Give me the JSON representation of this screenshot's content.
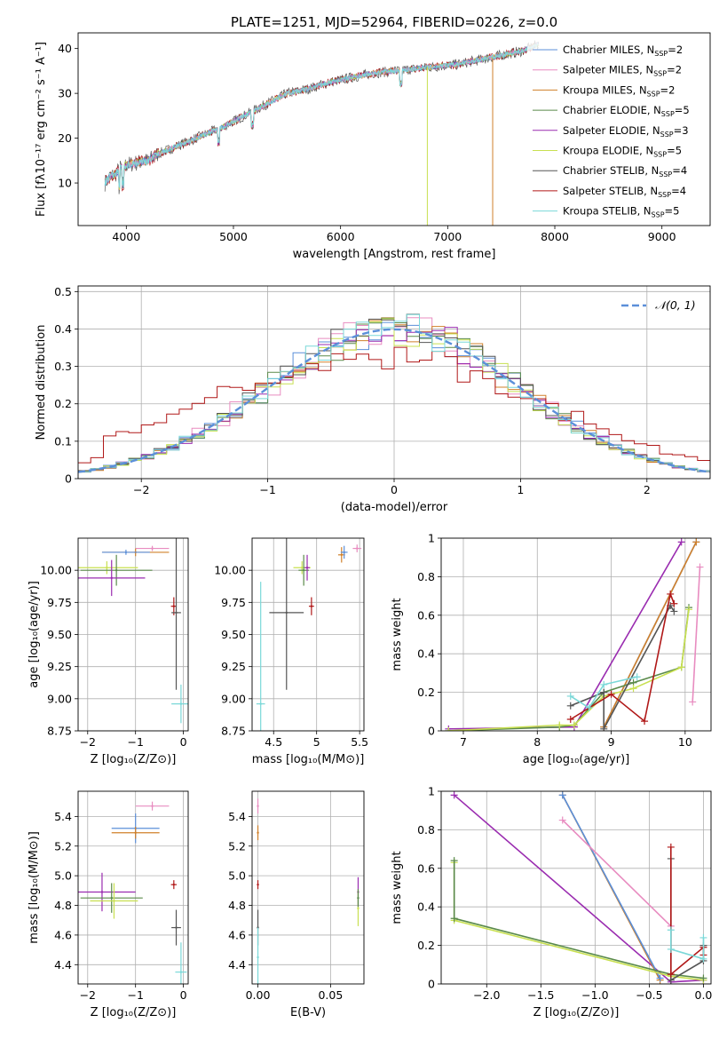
{
  "figure_title": "PLATE=1251, MJD=52964, FIBERID=0226, z=0.0",
  "colors": {
    "chabrier_miles": "#5b8fd9",
    "salpeter_miles": "#e88cc0",
    "kroupa_miles": "#d0802a",
    "chabrier_elodie": "#5a8a4a",
    "salpeter_elodie": "#9a2cb0",
    "kroupa_elodie": "#c8e050",
    "chabrier_stelib": "#555555",
    "salpeter_stelib": "#b01818",
    "kroupa_stelib": "#7ad8d8",
    "normal_curve": "#5b8fd9"
  },
  "chart_data": [
    {
      "id": "spectrum",
      "type": "line",
      "title": "PLATE=1251, MJD=52964, FIBERID=0226, z=0.0",
      "xlabel": "wavelength [Angstrom, rest frame]",
      "ylabel": "Flux [fλ10⁻¹⁷ erg cm⁻² s⁻¹ A⁻¹]",
      "xlim": [
        3550,
        9450
      ],
      "ylim": [
        0.5,
        43.5
      ],
      "xticks": [
        4000,
        5000,
        6000,
        7000,
        8000,
        9000
      ],
      "yticks": [
        10,
        20,
        30,
        40
      ],
      "grid": false,
      "legend_position": "right",
      "legend": [
        {
          "label": "Chabrier MILES, N",
          "sub": "SSP",
          "suffix": "=2",
          "color_key": "chabrier_miles"
        },
        {
          "label": "Salpeter MILES, N",
          "sub": "SSP",
          "suffix": "=2",
          "color_key": "salpeter_miles"
        },
        {
          "label": "Kroupa MILES, N",
          "sub": "SSP",
          "suffix": "=2",
          "color_key": "kroupa_miles"
        },
        {
          "label": "Chabrier ELODIE, N",
          "sub": "SSP",
          "suffix": "=5",
          "color_key": "chabrier_elodie"
        },
        {
          "label": "Salpeter ELODIE, N",
          "sub": "SSP",
          "suffix": "=3",
          "color_key": "salpeter_elodie"
        },
        {
          "label": "Kroupa ELODIE, N",
          "sub": "SSP",
          "suffix": "=5",
          "color_key": "kroupa_elodie"
        },
        {
          "label": "Chabrier STELIB, N",
          "sub": "SSP",
          "suffix": "=4",
          "color_key": "chabrier_stelib"
        },
        {
          "label": "Salpeter STELIB, N",
          "sub": "SSP",
          "suffix": "=4",
          "color_key": "salpeter_stelib"
        },
        {
          "label": "Kroupa STELIB, N",
          "sub": "SSP",
          "suffix": "=5",
          "color_key": "kroupa_stelib"
        }
      ],
      "continuum": {
        "x": [
          3800,
          3850,
          3900,
          3950,
          4000,
          4100,
          4200,
          4300,
          4400,
          4500,
          4700,
          4900,
          5100,
          5300,
          5500,
          5700,
          5900,
          6100,
          6300,
          6500,
          6700,
          6900,
          7100,
          7300,
          7500,
          7700,
          7850
        ],
        "y": [
          10,
          11.5,
          12,
          13.5,
          14,
          14.5,
          15,
          16.5,
          17.5,
          18.5,
          20.5,
          22.5,
          25,
          27.5,
          30,
          31,
          32.5,
          33.5,
          34.5,
          35,
          35.5,
          36,
          36.5,
          37.5,
          38.5,
          39.5,
          41
        ]
      },
      "spikes": [
        {
          "x": 6810,
          "from": 36,
          "to": 0.5,
          "color_key": "kroupa_elodie"
        },
        {
          "x": 7420,
          "from": 37.5,
          "to": 0.5,
          "color_key": "kroupa_miles"
        }
      ]
    },
    {
      "id": "residuals",
      "type": "histogram",
      "xlabel": "(data-model)/error",
      "ylabel": "Normed distribution",
      "xlim": [
        -2.5,
        2.5
      ],
      "ylim": [
        0,
        0.515
      ],
      "xticks": [
        -2,
        -1,
        0,
        1,
        2
      ],
      "yticks": [
        0,
        0.1,
        0.2,
        0.3,
        0.4,
        0.5
      ],
      "grid": true,
      "legend_position": "top-right",
      "normal_label": "𝒩(0, 1)",
      "bin_width": 0.1
    },
    {
      "id": "age_vs_Z",
      "type": "scatter",
      "xlabel": "Z [log₁₀(Z/Z⊙)]",
      "ylabel": "age  [log₁₀(age/yr)]",
      "xlim": [
        -2.2,
        0.1
      ],
      "ylim": [
        8.75,
        10.25
      ],
      "xticks": [
        -2,
        -1,
        0
      ],
      "yticks": [
        8.75,
        9.0,
        9.25,
        9.5,
        9.75,
        10.0
      ],
      "ytick_labels": [
        "8.75",
        "9.00",
        "9.25",
        "9.50",
        "9.75",
        "10.00"
      ],
      "grid": true,
      "points": [
        {
          "color_key": "salpeter_miles",
          "x": -0.65,
          "xerr": 0.35,
          "y": 10.17,
          "yerr": 0.02
        },
        {
          "color_key": "kroupa_miles",
          "x": -1.0,
          "xerr": 0.7,
          "y": 10.14,
          "yerr": 0.03
        },
        {
          "color_key": "chabrier_miles",
          "x": -1.2,
          "xerr": 0.5,
          "y": 10.14,
          "yerr": 0.02
        },
        {
          "color_key": "kroupa_elodie",
          "x": -1.6,
          "xerr": 0.65,
          "y": 10.02,
          "yerr": 0.05
        },
        {
          "color_key": "chabrier_elodie",
          "x": -1.4,
          "xerr": 0.75,
          "y": 10.0,
          "yerr": 0.12
        },
        {
          "color_key": "salpeter_elodie",
          "x": -1.5,
          "xerr": 0.7,
          "y": 9.94,
          "yerr": 0.14
        },
        {
          "color_key": "salpeter_stelib",
          "x": -0.2,
          "xerr": 0.06,
          "y": 9.72,
          "yerr": 0.07
        },
        {
          "color_key": "chabrier_stelib",
          "x": -0.15,
          "xerr": 0.1,
          "y": 9.67,
          "yerr": 0.6
        },
        {
          "color_key": "kroupa_stelib",
          "x": -0.05,
          "xerr": 0.2,
          "y": 8.96,
          "yerr": 0.15
        }
      ]
    },
    {
      "id": "age_vs_mass",
      "type": "scatter",
      "xlabel": "mass [log₁₀(M/M⊙)]",
      "ylabel": "",
      "xlim": [
        4.25,
        5.55
      ],
      "ylim": [
        8.75,
        10.25
      ],
      "xticks": [
        4.5,
        5.0,
        5.5
      ],
      "yticks": [
        8.75,
        9.0,
        9.25,
        9.5,
        9.75,
        10.0
      ],
      "ytick_labels": [
        "8.75",
        "9.00",
        "9.25",
        "9.50",
        "9.75",
        "10.00"
      ],
      "grid": true,
      "points": [
        {
          "color_key": "salpeter_miles",
          "x": 5.47,
          "xerr": 0.05,
          "y": 10.17,
          "yerr": 0.03
        },
        {
          "color_key": "kroupa_miles",
          "x": 5.29,
          "xerr": 0.04,
          "y": 10.12,
          "yerr": 0.06
        },
        {
          "color_key": "chabrier_miles",
          "x": 5.32,
          "xerr": 0.04,
          "y": 10.14,
          "yerr": 0.05
        },
        {
          "color_key": "kroupa_elodie",
          "x": 4.83,
          "xerr": 0.1,
          "y": 10.02,
          "yerr": 0.05
        },
        {
          "color_key": "chabrier_elodie",
          "x": 4.85,
          "xerr": 0.06,
          "y": 10.0,
          "yerr": 0.12
        },
        {
          "color_key": "salpeter_elodie",
          "x": 4.89,
          "xerr": 0.03,
          "y": 10.02,
          "yerr": 0.1
        },
        {
          "color_key": "salpeter_stelib",
          "x": 4.94,
          "xerr": 0.03,
          "y": 9.72,
          "yerr": 0.07
        },
        {
          "color_key": "chabrier_stelib",
          "x": 4.65,
          "xerr": 0.2,
          "y": 9.67,
          "yerr": 0.6
        },
        {
          "color_key": "kroupa_stelib",
          "x": 4.35,
          "xerr": 0.05,
          "y": 8.96,
          "yerr": 0.95
        }
      ]
    },
    {
      "id": "weight_vs_age",
      "type": "line",
      "xlabel": "age  [log₁₀(age/yr)]",
      "ylabel": "mass weight",
      "xlim": [
        6.7,
        10.35
      ],
      "ylim": [
        0,
        1.0
      ],
      "xticks": [
        7,
        8,
        9,
        10
      ],
      "yticks": [
        0,
        0.2,
        0.4,
        0.6,
        0.8,
        1.0
      ],
      "grid": true,
      "series": [
        {
          "color_key": "chabrier_miles",
          "x": [
            8.9,
            10.15
          ],
          "y": [
            0.02,
            0.98
          ]
        },
        {
          "color_key": "kroupa_miles",
          "x": [
            8.9,
            10.15
          ],
          "y": [
            0.02,
            0.98
          ]
        },
        {
          "color_key": "salpeter_miles",
          "x": [
            10.1,
            10.2
          ],
          "y": [
            0.15,
            0.85
          ]
        },
        {
          "color_key": "salpeter_elodie",
          "x": [
            6.8,
            8.5,
            9.95
          ],
          "y": [
            0.01,
            0.02,
            0.98
          ]
        },
        {
          "color_key": "chabrier_elodie",
          "x": [
            6.8,
            8.3,
            8.5,
            8.9,
            9.3,
            9.95,
            10.05
          ],
          "y": [
            0.0,
            0.02,
            0.03,
            0.2,
            0.25,
            0.33,
            0.64
          ]
        },
        {
          "color_key": "kroupa_elodie",
          "x": [
            6.8,
            8.3,
            8.5,
            8.9,
            9.3,
            9.95,
            10.05
          ],
          "y": [
            0.0,
            0.03,
            0.03,
            0.18,
            0.22,
            0.33,
            0.63
          ]
        },
        {
          "color_key": "chabrier_stelib",
          "x": [
            8.45,
            8.9,
            8.9,
            9.8,
            9.85
          ],
          "y": [
            0.13,
            0.2,
            0.01,
            0.65,
            0.62
          ]
        },
        {
          "color_key": "salpeter_stelib",
          "x": [
            8.45,
            9.0,
            9.45,
            9.8,
            9.85
          ],
          "y": [
            0.06,
            0.19,
            0.05,
            0.71,
            0.66
          ]
        },
        {
          "color_key": "kroupa_stelib",
          "x": [
            8.45,
            8.7,
            8.9,
            9.35
          ],
          "y": [
            0.18,
            0.12,
            0.24,
            0.28
          ]
        }
      ]
    },
    {
      "id": "mass_vs_Z",
      "type": "scatter",
      "xlabel": "Z [log₁₀(Z/Z⊙)]",
      "ylabel": "mass [log₁₀(M/M⊙)]",
      "xlim": [
        -2.2,
        0.1
      ],
      "ylim": [
        4.27,
        5.57
      ],
      "xticks": [
        -2,
        -1,
        0
      ],
      "yticks": [
        4.4,
        4.6,
        4.8,
        5.0,
        5.2,
        5.4
      ],
      "ytick_labels": [
        "4.4",
        "4.6",
        "4.8",
        "5.0",
        "5.2",
        "5.4"
      ],
      "grid": true,
      "points": [
        {
          "color_key": "salpeter_miles",
          "x": -0.65,
          "xerr": 0.35,
          "y": 5.47,
          "yerr": 0.03
        },
        {
          "color_key": "chabrier_miles",
          "x": -1.0,
          "xerr": 0.5,
          "y": 5.32,
          "yerr": 0.1
        },
        {
          "color_key": "kroupa_miles",
          "x": -1.0,
          "xerr": 0.5,
          "y": 5.29,
          "yerr": 0.04
        },
        {
          "color_key": "salpeter_elodie",
          "x": -1.7,
          "xerr": 0.7,
          "y": 4.89,
          "yerr": 0.13
        },
        {
          "color_key": "chabrier_elodie",
          "x": -1.5,
          "xerr": 0.65,
          "y": 4.85,
          "yerr": 0.1
        },
        {
          "color_key": "kroupa_elodie",
          "x": -1.45,
          "xerr": 0.5,
          "y": 4.83,
          "yerr": 0.12
        },
        {
          "color_key": "salpeter_stelib",
          "x": -0.2,
          "xerr": 0.06,
          "y": 4.94,
          "yerr": 0.03
        },
        {
          "color_key": "chabrier_stelib",
          "x": -0.15,
          "xerr": 0.1,
          "y": 4.65,
          "yerr": 0.12
        },
        {
          "color_key": "kroupa_stelib",
          "x": -0.05,
          "xerr": 0.12,
          "y": 4.35,
          "yerr": 0.2
        }
      ]
    },
    {
      "id": "mass_vs_ebv",
      "type": "scatter",
      "xlabel": "E(B-V)",
      "ylabel": "",
      "xlim": [
        -0.004,
        0.073
      ],
      "ylim": [
        4.27,
        5.57
      ],
      "xticks": [
        0.0,
        0.05
      ],
      "xtick_labels": [
        "0.00",
        "0.05"
      ],
      "yticks": [
        4.4,
        4.6,
        4.8,
        5.0,
        5.2,
        5.4
      ],
      "ytick_labels": [
        "4.4",
        "4.6",
        "4.8",
        "5.0",
        "5.2",
        "5.4"
      ],
      "grid": true,
      "points": [
        {
          "color_key": "salpeter_miles",
          "x": 0.0,
          "xerr": 0.0,
          "y": 5.47,
          "yerr": 0.05
        },
        {
          "color_key": "kroupa_miles",
          "x": 0.0,
          "xerr": 0.0,
          "y": 5.29,
          "yerr": 0.05
        },
        {
          "color_key": "salpeter_stelib",
          "x": 0.0,
          "xerr": 0.0,
          "y": 4.94,
          "yerr": 0.03
        },
        {
          "color_key": "chabrier_stelib",
          "x": 0.0,
          "xerr": 0.0,
          "y": 4.65,
          "yerr": 0.12
        },
        {
          "color_key": "kroupa_stelib",
          "x": 0.0,
          "xerr": 0.0,
          "y": 4.45,
          "yerr": 0.2
        },
        {
          "color_key": "salpeter_elodie",
          "x": 0.069,
          "xerr": 0.0,
          "y": 4.89,
          "yerr": 0.1
        },
        {
          "color_key": "kroupa_elodie",
          "x": 0.069,
          "xerr": 0.0,
          "y": 4.78,
          "yerr": 0.12
        },
        {
          "color_key": "chabrier_elodie",
          "x": 0.069,
          "xerr": 0.0,
          "y": 4.85,
          "yerr": 0.06
        }
      ]
    },
    {
      "id": "weight_vs_Z",
      "type": "line",
      "xlabel": "Z [log₁₀(Z/Z⊙)]",
      "ylabel": "mass weight",
      "xlim": [
        -2.42,
        0.07
      ],
      "ylim": [
        0,
        1.0
      ],
      "xticks": [
        -2.0,
        -1.5,
        -1.0,
        -0.5,
        0.0
      ],
      "xtick_labels": [
        "−2.0",
        "−1.5",
        "−1.0",
        "−0.5",
        "0.0"
      ],
      "yticks": [
        0,
        0.2,
        0.4,
        0.6,
        0.8,
        1.0
      ],
      "grid": true,
      "series": [
        {
          "color_key": "salpeter_elodie",
          "x": [
            -2.3,
            -0.3,
            0.0
          ],
          "y": [
            0.98,
            0.01,
            0.02
          ]
        },
        {
          "color_key": "kroupa_miles",
          "x": [
            -1.3,
            -0.4
          ],
          "y": [
            0.98,
            0.02
          ]
        },
        {
          "color_key": "chabrier_miles",
          "x": [
            -1.3,
            -0.4
          ],
          "y": [
            0.98,
            0.03
          ]
        },
        {
          "color_key": "salpeter_miles",
          "x": [
            -1.3,
            -0.3
          ],
          "y": [
            0.85,
            0.3
          ]
        },
        {
          "color_key": "kroupa_elodie",
          "x": [
            -2.3,
            -2.3,
            -0.3,
            0.0
          ],
          "y": [
            0.63,
            0.33,
            0.04,
            0.02
          ]
        },
        {
          "color_key": "chabrier_elodie",
          "x": [
            -2.3,
            -2.3,
            -0.3,
            0.0
          ],
          "y": [
            0.64,
            0.34,
            0.05,
            0.03
          ]
        },
        {
          "color_key": "chabrier_stelib",
          "x": [
            -0.3,
            -0.3,
            0.0,
            0.0
          ],
          "y": [
            0.65,
            0.02,
            0.12,
            0.2
          ]
        },
        {
          "color_key": "salpeter_stelib",
          "x": [
            -0.3,
            -0.3,
            0.0,
            0.0
          ],
          "y": [
            0.71,
            0.05,
            0.19,
            0.15
          ]
        },
        {
          "color_key": "kroupa_stelib",
          "x": [
            -0.3,
            -0.3,
            0.0,
            0.0
          ],
          "y": [
            0.28,
            0.18,
            0.13,
            0.24
          ]
        }
      ]
    }
  ]
}
